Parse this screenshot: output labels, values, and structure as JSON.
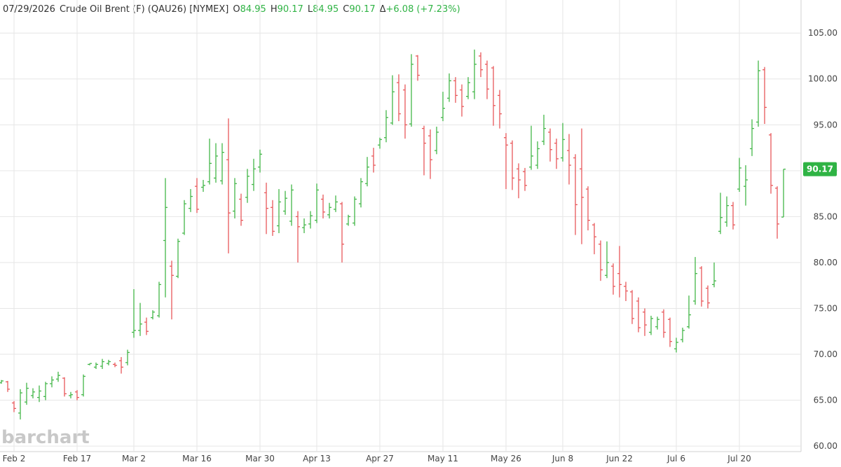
{
  "header": {
    "date": "07/29/2026",
    "symbol": "Crude Oil Brent (F) (QAU26) [NYMEX]",
    "open_label": "O",
    "high_label": "H",
    "low_label": "L",
    "close_label": "C",
    "change_label": "Δ",
    "change": "+6.08",
    "change_pct": "(+7.23%)"
  },
  "watermark": "barchart",
  "chart_data": {
    "type": "ohlc",
    "up_color": "#43b649",
    "down_color": "#e8585a",
    "grid": true,
    "categories": [
      null,
      null,
      "Feb 2",
      null,
      null,
      null,
      null,
      null,
      null,
      null,
      null,
      null,
      "Feb 17",
      null,
      null,
      null,
      null,
      null,
      null,
      null,
      null,
      "Mar 2",
      null,
      null,
      null,
      null,
      null,
      null,
      null,
      null,
      null,
      "Mar 16",
      null,
      null,
      null,
      null,
      null,
      null,
      null,
      null,
      null,
      "Mar 30",
      null,
      null,
      null,
      null,
      null,
      null,
      null,
      null,
      "Apr 13",
      null,
      null,
      null,
      null,
      null,
      null,
      null,
      null,
      null,
      "Apr 27",
      null,
      null,
      null,
      null,
      null,
      null,
      null,
      null,
      null,
      "May 11",
      null,
      null,
      null,
      null,
      null,
      null,
      null,
      null,
      null,
      "May 26",
      null,
      null,
      null,
      null,
      null,
      null,
      null,
      null,
      "Jun 8",
      null,
      null,
      null,
      null,
      null,
      null,
      null,
      null,
      "Jun 22",
      null,
      null,
      null,
      null,
      null,
      null,
      null,
      null,
      "Jul 6",
      null,
      null,
      null,
      null,
      null,
      null,
      null,
      null,
      null,
      "Jul 20",
      null,
      null,
      null,
      null,
      null,
      null,
      null
    ],
    "open": [
      66.9,
      67.0,
      64.7,
      63.6,
      64.8,
      65.5,
      65.3,
      65.4,
      66.8,
      67.3,
      67.4,
      65.5,
      65.9,
      65.6,
      68.9,
      68.6,
      68.7,
      69.0,
      68.9,
      69.3,
      69.1,
      72.4,
      72.6,
      73.5,
      74.0,
      74.2,
      82.4,
      79.6,
      78.5,
      83.2,
      85.9,
      88.3,
      88.2,
      88.8,
      89.2,
      88.9,
      91.2,
      85.6,
      86.9,
      87.1,
      88.5,
      90.4,
      87.6,
      86.0,
      84.0,
      85.6,
      84.5,
      85.0,
      83.8,
      84.2,
      84.6,
      86.9,
      85.2,
      85.8,
      86.4,
      84.2,
      84.3,
      86.4,
      88.6,
      91.6,
      92.8,
      93.6,
      95.2,
      99.6,
      98.8,
      95.1,
      102.5,
      94.6,
      93.8,
      92.2,
      95.8,
      97.9,
      99.8,
      98.8,
      98.1,
      98.6,
      102.5,
      101.6,
      101.2,
      98.2,
      93.6,
      93.0,
      90.2,
      89.9,
      90.4,
      90.6,
      93.2,
      94.2,
      93.0,
      91.4,
      92.2,
      91.4,
      90.2,
      88.0,
      84.1,
      82.0,
      78.6,
      79.6,
      78.8,
      77.4,
      76.8,
      75.8,
      74.6,
      72.4,
      73.0,
      74.6,
      73.8,
      70.6,
      71.6,
      73.0,
      75.8,
      79.4,
      77.2,
      77.6,
      83.4,
      84.4,
      86.2,
      88.0,
      88.3,
      92.4,
      95.3,
      101.0,
      93.9,
      88.1,
      84.95
    ],
    "high": [
      67.2,
      67.1,
      64.9,
      66.2,
      66.9,
      66.3,
      66.6,
      67.0,
      67.6,
      68.1,
      67.5,
      65.9,
      66.1,
      67.8,
      69.0,
      69.1,
      69.5,
      69.4,
      69.1,
      69.7,
      70.5,
      77.1,
      75.6,
      74.0,
      74.8,
      77.9,
      89.2,
      80.2,
      82.6,
      86.8,
      88.0,
      89.2,
      89.0,
      93.5,
      93.0,
      93.0,
      95.7,
      89.2,
      87.5,
      90.2,
      91.3,
      92.3,
      88.7,
      86.8,
      88.0,
      87.8,
      88.5,
      85.6,
      84.8,
      85.6,
      88.6,
      87.4,
      86.5,
      87.3,
      86.6,
      85.2,
      87.2,
      89.2,
      91.5,
      92.5,
      93.6,
      96.6,
      100.4,
      100.5,
      99.4,
      102.7,
      102.6,
      94.9,
      94.5,
      94.8,
      98.6,
      100.6,
      100.2,
      99.4,
      100.2,
      103.2,
      102.9,
      102.0,
      101.4,
      98.8,
      94.1,
      93.3,
      90.8,
      90.3,
      94.9,
      93.2,
      96.1,
      94.6,
      93.5,
      95.2,
      94.0,
      91.8,
      94.6,
      88.3,
      84.3,
      82.4,
      82.3,
      79.9,
      81.8,
      77.9,
      77.0,
      76.2,
      75.0,
      74.2,
      74.1,
      74.9,
      74.0,
      71.8,
      72.9,
      76.4,
      80.6,
      79.6,
      77.5,
      80.0,
      87.6,
      87.2,
      86.6,
      91.4,
      90.6,
      95.6,
      102.0,
      101.3,
      94.1,
      88.3,
      90.17
    ],
    "low": [
      66.8,
      65.9,
      63.7,
      62.9,
      64.5,
      65.2,
      64.8,
      65.0,
      66.4,
      67.0,
      65.4,
      65.2,
      65.0,
      65.4,
      68.8,
      68.4,
      68.4,
      68.8,
      68.6,
      67.9,
      68.8,
      71.8,
      72.0,
      72.1,
      73.8,
      74.0,
      76.2,
      73.8,
      78.3,
      83.0,
      85.5,
      85.4,
      87.7,
      88.5,
      88.7,
      88.5,
      81.0,
      84.8,
      84.0,
      86.5,
      87.8,
      89.8,
      83.1,
      82.9,
      83.2,
      85.2,
      84.0,
      80.0,
      83.2,
      83.7,
      84.3,
      84.8,
      84.8,
      85.5,
      80.0,
      84.0,
      84.0,
      86.0,
      88.3,
      89.8,
      92.4,
      93.1,
      95.0,
      95.4,
      93.5,
      94.8,
      99.8,
      89.5,
      89.1,
      91.8,
      95.4,
      97.5,
      97.4,
      95.9,
      97.8,
      97.8,
      100.2,
      97.8,
      94.9,
      94.6,
      88.0,
      87.9,
      87.0,
      87.8,
      90.1,
      90.2,
      92.8,
      91.0,
      90.2,
      91.0,
      88.5,
      83.0,
      82.0,
      83.5,
      80.9,
      78.0,
      78.3,
      76.5,
      76.2,
      75.8,
      73.3,
      72.4,
      72.0,
      72.1,
      72.7,
      71.8,
      70.8,
      70.2,
      71.3,
      72.8,
      75.4,
      75.2,
      75.0,
      77.3,
      83.1,
      83.9,
      83.6,
      87.7,
      86.2,
      91.6,
      94.8,
      95.1,
      87.5,
      82.6,
      84.95
    ],
    "close": [
      67.1,
      66.2,
      64.1,
      65.8,
      66.3,
      65.9,
      66.0,
      66.8,
      67.2,
      67.7,
      65.7,
      65.6,
      65.3,
      67.6,
      69.0,
      68.9,
      69.2,
      69.2,
      68.8,
      68.6,
      70.2,
      72.6,
      73.3,
      72.5,
      74.6,
      77.6,
      86.0,
      78.6,
      82.3,
      86.4,
      87.2,
      85.8,
      88.4,
      90.8,
      91.6,
      92.0,
      85.4,
      88.6,
      84.6,
      89.4,
      90.2,
      91.8,
      85.9,
      83.4,
      86.6,
      87.0,
      87.9,
      83.9,
      84.1,
      85.1,
      87.9,
      85.5,
      86.0,
      86.6,
      82.0,
      85.0,
      86.9,
      88.8,
      90.4,
      90.6,
      93.4,
      95.8,
      98.6,
      96.2,
      95.0,
      101.6,
      100.4,
      93.0,
      91.2,
      94.2,
      96.8,
      99.8,
      98.2,
      97.0,
      99.6,
      101.6,
      101.0,
      98.9,
      97.1,
      96.2,
      92.8,
      89.2,
      89.0,
      88.4,
      91.6,
      92.4,
      94.6,
      92.3,
      91.3,
      93.4,
      90.6,
      86.3,
      87.1,
      84.6,
      82.8,
      79.2,
      80.0,
      77.4,
      77.6,
      76.9,
      73.9,
      72.9,
      73.2,
      73.9,
      73.8,
      72.4,
      71.4,
      71.3,
      72.6,
      74.3,
      78.8,
      75.8,
      75.6,
      78.0,
      84.9,
      86.2,
      84.1,
      90.3,
      89.0,
      94.6,
      100.9,
      96.9,
      88.4,
      84.2,
      90.17
    ],
    "ylim": [
      59.4,
      108.6
    ],
    "yticks": [
      {
        "value": 60,
        "label": "60.00"
      },
      {
        "value": 65,
        "label": "65.00"
      },
      {
        "value": 70,
        "label": "70.00"
      },
      {
        "value": 75,
        "label": "75.00"
      },
      {
        "value": 80,
        "label": "80.00"
      },
      {
        "value": 85,
        "label": "85.00"
      },
      {
        "value": 90,
        "label": "90.00"
      },
      {
        "value": 95,
        "label": "95.00"
      },
      {
        "value": 100,
        "label": "100.00"
      },
      {
        "value": 105,
        "label": "105.00"
      }
    ]
  }
}
